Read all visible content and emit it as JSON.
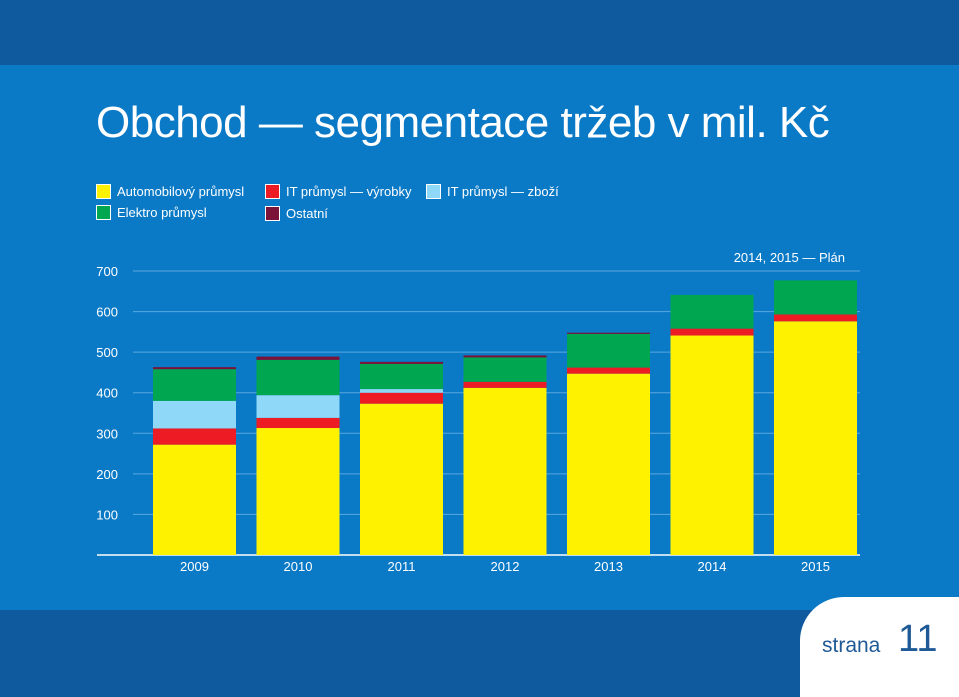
{
  "header": {
    "title": "Obchod — segmentace tržeb v mil. Kč"
  },
  "footer": {
    "page_label": "strana",
    "page_number": "11"
  },
  "colors": {
    "background_dark": "#0f5a9e",
    "background_panel": "#0a79c6",
    "grid": "#5aa8e0",
    "text": "#ffffff"
  },
  "chart_data": {
    "type": "bar",
    "stacked": true,
    "categories": [
      "2009",
      "2010",
      "2011",
      "2012",
      "2013",
      "2014",
      "2015"
    ],
    "ylim": [
      0,
      700
    ],
    "yticks": [
      100,
      200,
      300,
      400,
      500,
      600,
      700
    ],
    "grid": true,
    "annotation": "2014, 2015 — Plán",
    "series": [
      {
        "name": "Automobilový průmysl",
        "color": "#fff200",
        "values": [
          272,
          313,
          373,
          412,
          447,
          541,
          576
        ]
      },
      {
        "name": "IT průmysl — výrobky",
        "color": "#ed1c24",
        "values": [
          40,
          25,
          27,
          15,
          15,
          17,
          17
        ]
      },
      {
        "name": "IT průmysl — zboží",
        "color": "#8fd8f8",
        "values": [
          68,
          56,
          9,
          0,
          0,
          0,
          0
        ]
      },
      {
        "name": "Elektro průmysl",
        "color": "#00a650",
        "values": [
          78,
          87,
          62,
          60,
          83,
          83,
          84
        ]
      },
      {
        "name": "Ostatní",
        "color": "#7b1338",
        "values": [
          5,
          8,
          5,
          5,
          3,
          0,
          0
        ]
      }
    ]
  }
}
